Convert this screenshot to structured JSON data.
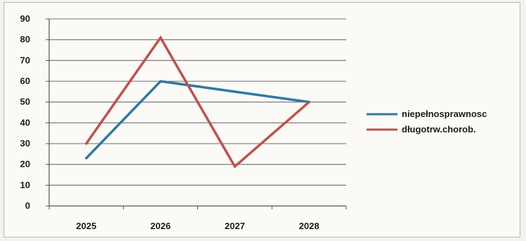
{
  "chart_data": {
    "type": "line",
    "title": "",
    "xlabel": "",
    "ylabel": "",
    "categories": [
      "2025",
      "2026",
      "2027",
      "2028"
    ],
    "ylim": [
      0,
      90
    ],
    "yticks": [
      "0",
      "10",
      "20",
      "30",
      "40",
      "50",
      "60",
      "70",
      "80",
      "90"
    ],
    "grid": "horizontal",
    "legend_position": "right",
    "series": [
      {
        "name": "niepełnosprawnosc",
        "values": [
          23,
          60,
          55,
          50
        ],
        "color": "#2e78a6"
      },
      {
        "name": "długotrw.chorob.",
        "values": [
          30,
          81,
          19,
          50
        ],
        "color": "#c0504d"
      }
    ]
  }
}
